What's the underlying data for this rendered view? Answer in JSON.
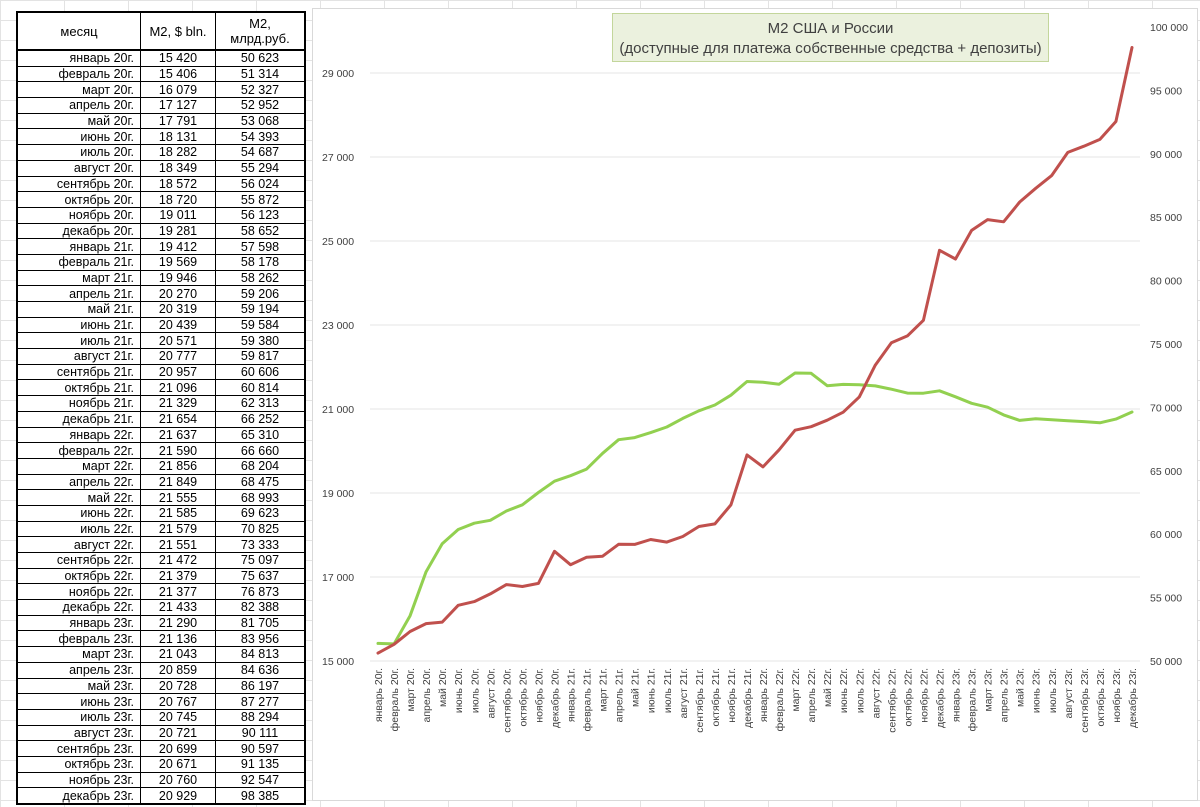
{
  "table": {
    "headers": [
      "месяц",
      "M2, $ bln.",
      "M2, млрд.руб."
    ],
    "rows": [
      [
        "январь 20г.",
        "15 420",
        "50 623"
      ],
      [
        "февраль 20г.",
        "15 406",
        "51 314"
      ],
      [
        "март 20г.",
        "16 079",
        "52 327"
      ],
      [
        "апрель 20г.",
        "17 127",
        "52 952"
      ],
      [
        "май 20г.",
        "17 791",
        "53 068"
      ],
      [
        "июнь 20г.",
        "18 131",
        "54 393"
      ],
      [
        "июль 20г.",
        "18 282",
        "54 687"
      ],
      [
        "август 20г.",
        "18 349",
        "55 294"
      ],
      [
        "сентябрь 20г.",
        "18 572",
        "56 024"
      ],
      [
        "октябрь 20г.",
        "18 720",
        "55 872"
      ],
      [
        "ноябрь 20г.",
        "19 011",
        "56 123"
      ],
      [
        "декабрь 20г.",
        "19 281",
        "58 652"
      ],
      [
        "январь 21г.",
        "19 412",
        "57 598"
      ],
      [
        "февраль 21г.",
        "19 569",
        "58 178"
      ],
      [
        "март 21г.",
        "19 946",
        "58 262"
      ],
      [
        "апрель 21г.",
        "20 270",
        "59 206"
      ],
      [
        "май 21г.",
        "20 319",
        "59 194"
      ],
      [
        "июнь 21г.",
        "20 439",
        "59 584"
      ],
      [
        "июль 21г.",
        "20 571",
        "59 380"
      ],
      [
        "август 21г.",
        "20 777",
        "59 817"
      ],
      [
        "сентябрь 21г.",
        "20 957",
        "60 606"
      ],
      [
        "октябрь 21г.",
        "21 096",
        "60 814"
      ],
      [
        "ноябрь 21г.",
        "21 329",
        "62 313"
      ],
      [
        "декабрь 21г.",
        "21 654",
        "66 252"
      ],
      [
        "январь 22г.",
        "21 637",
        "65 310"
      ],
      [
        "февраль 22г.",
        "21 590",
        "66 660"
      ],
      [
        "март 22г.",
        "21 856",
        "68 204"
      ],
      [
        "апрель 22г.",
        "21 849",
        "68 475"
      ],
      [
        "май 22г.",
        "21 555",
        "68 993"
      ],
      [
        "июнь 22г.",
        "21 585",
        "69 623"
      ],
      [
        "июль 22г.",
        "21 579",
        "70 825"
      ],
      [
        "август 22г.",
        "21 551",
        "73 333"
      ],
      [
        "сентябрь 22г.",
        "21 472",
        "75 097"
      ],
      [
        "октябрь 22г.",
        "21 379",
        "75 637"
      ],
      [
        "ноябрь 22г.",
        "21 377",
        "76 873"
      ],
      [
        "декабрь 22г.",
        "21 433",
        "82 388"
      ],
      [
        "январь 23г.",
        "21 290",
        "81 705"
      ],
      [
        "февраль 23г.",
        "21 136",
        "83 956"
      ],
      [
        "март 23г.",
        "21 043",
        "84 813"
      ],
      [
        "апрель 23г.",
        "20 859",
        "84 636"
      ],
      [
        "май 23г.",
        "20 728",
        "86 197"
      ],
      [
        "июнь 23г.",
        "20 767",
        "87 277"
      ],
      [
        "июль 23г.",
        "20 745",
        "88 294"
      ],
      [
        "август 23г.",
        "20 721",
        "90 111"
      ],
      [
        "сентябрь 23г.",
        "20 699",
        "90 597"
      ],
      [
        "октябрь 23г.",
        "20 671",
        "91 135"
      ],
      [
        "ноябрь 23г.",
        "20 760",
        "92 547"
      ],
      [
        "декабрь 23г.",
        "20 929",
        "98 385"
      ]
    ]
  },
  "chart_data": {
    "type": "line",
    "title": "M2 США и России",
    "subtitle": "(доступные для платежа собственные средства + депозиты)",
    "categories": [
      "январь 20г.",
      "февраль 20г.",
      "март 20г.",
      "апрель 20г.",
      "май 20г.",
      "июнь 20г.",
      "июль 20г.",
      "август 20г.",
      "сентябрь 20г.",
      "октябрь 20г.",
      "ноябрь 20г.",
      "декабрь 20г.",
      "январь 21г.",
      "февраль 21г.",
      "март 21г.",
      "апрель 21г.",
      "май 21г.",
      "июнь 21г.",
      "июль 21г.",
      "август 21г.",
      "сентябрь 21г.",
      "октябрь 21г.",
      "ноябрь 21г.",
      "декабрь 21г.",
      "январь 22г.",
      "февраль 22г.",
      "март 22г.",
      "апрель 22г.",
      "май 22г.",
      "июнь 22г.",
      "июль 22г.",
      "август 22г.",
      "сентябрь 22г.",
      "октябрь 22г.",
      "ноябрь 22г.",
      "декабрь 22г.",
      "январь 23г.",
      "февраль 23г.",
      "март 23г.",
      "апрель 23г.",
      "май 23г.",
      "июнь 23г.",
      "июль 23г.",
      "август 23г.",
      "сентябрь 23г.",
      "октябрь 23г.",
      "ноябрь 23г.",
      "декабрь 23г."
    ],
    "series": [
      {
        "name": "M2, $ bln.",
        "axis": "left",
        "color": "#92d050",
        "values": [
          15420,
          15406,
          16079,
          17127,
          17791,
          18131,
          18282,
          18349,
          18572,
          18720,
          19011,
          19281,
          19412,
          19569,
          19946,
          20270,
          20319,
          20439,
          20571,
          20777,
          20957,
          21096,
          21329,
          21654,
          21637,
          21590,
          21856,
          21849,
          21555,
          21585,
          21579,
          21551,
          21472,
          21379,
          21377,
          21433,
          21290,
          21136,
          21043,
          20859,
          20728,
          20767,
          20745,
          20721,
          20699,
          20671,
          20760,
          20929
        ]
      },
      {
        "name": "M2, млрд.руб.",
        "axis": "right",
        "color": "#c0504d",
        "values": [
          50623,
          51314,
          52327,
          52952,
          53068,
          54393,
          54687,
          55294,
          56024,
          55872,
          56123,
          58652,
          57598,
          58178,
          58262,
          59206,
          59194,
          59584,
          59380,
          59817,
          60606,
          60814,
          62313,
          66252,
          65310,
          66660,
          68204,
          68475,
          68993,
          69623,
          70825,
          73333,
          75097,
          75637,
          76873,
          82388,
          81705,
          83956,
          84813,
          84636,
          86197,
          87277,
          88294,
          90111,
          90597,
          91135,
          92547,
          98385
        ]
      }
    ],
    "y_left": {
      "min": 15000,
      "max": 30000,
      "ticks": [
        15000,
        17000,
        19000,
        21000,
        23000,
        25000,
        27000,
        29000
      ],
      "tick_labels": [
        "15 000",
        "17 000",
        "19 000",
        "21 000",
        "23 000",
        "25 000",
        "27 000",
        "29 000"
      ]
    },
    "y_right": {
      "min": 50000,
      "max": 100000,
      "ticks": [
        50000,
        55000,
        60000,
        65000,
        70000,
        75000,
        80000,
        85000,
        90000,
        95000,
        100000
      ],
      "tick_labels": [
        "50 000",
        "55 000",
        "60 000",
        "65 000",
        "70 000",
        "75 000",
        "80 000",
        "85 000",
        "90 000",
        "95 000",
        "100 000"
      ]
    },
    "grid": true,
    "legend": "none"
  }
}
